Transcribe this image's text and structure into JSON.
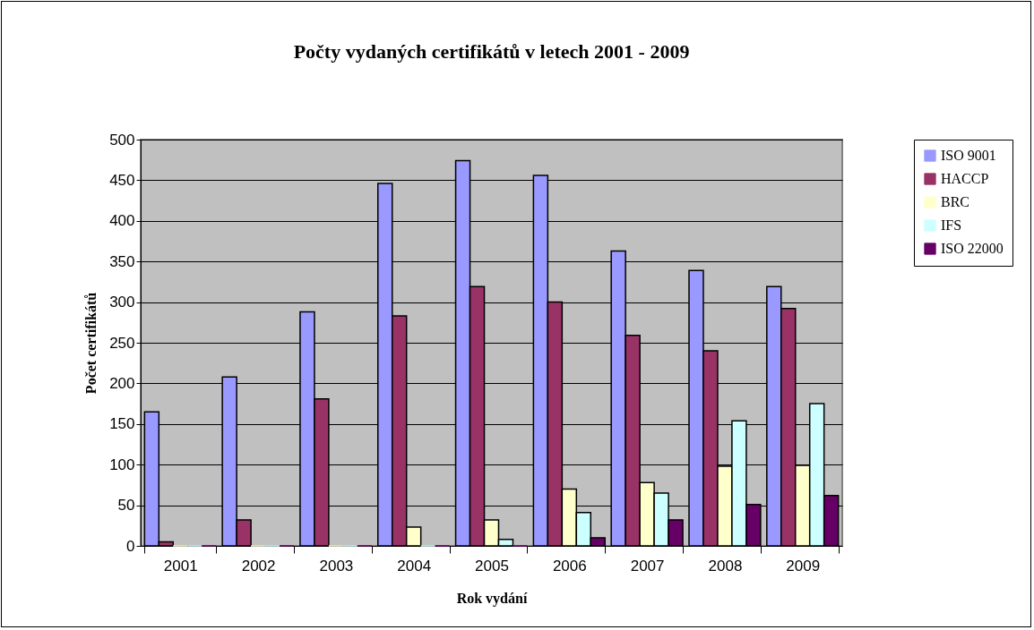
{
  "chart_data": {
    "type": "bar",
    "title": "Počty vydaných certifikátů v letech 2001 - 2009",
    "xlabel": "Rok vydání",
    "ylabel": "Počet certifikátů",
    "categories": [
      "2001",
      "2002",
      "2003",
      "2004",
      "2005",
      "2006",
      "2007",
      "2008",
      "2009"
    ],
    "series": [
      {
        "name": "ISO 9001",
        "color": "#9999ff",
        "values": [
          165,
          208,
          288,
          446,
          474,
          456,
          363,
          339,
          319
        ]
      },
      {
        "name": "HACCP",
        "color": "#993366",
        "values": [
          5,
          32,
          181,
          283,
          319,
          300,
          259,
          240,
          292
        ]
      },
      {
        "name": "BRC",
        "color": "#ffffcc",
        "values": [
          0,
          0,
          0,
          23,
          32,
          70,
          78,
          98,
          99
        ]
      },
      {
        "name": "IFS",
        "color": "#ccffff",
        "values": [
          0,
          0,
          0,
          0,
          8,
          41,
          65,
          154,
          175
        ]
      },
      {
        "name": "ISO 22000",
        "color": "#660066",
        "values": [
          0,
          0,
          0,
          0,
          0,
          10,
          32,
          51,
          62
        ]
      }
    ],
    "ylim": [
      0,
      500
    ],
    "yticks": [
      0,
      50,
      100,
      150,
      200,
      250,
      300,
      350,
      400,
      450,
      500
    ],
    "grid": "y",
    "legend": "right"
  }
}
